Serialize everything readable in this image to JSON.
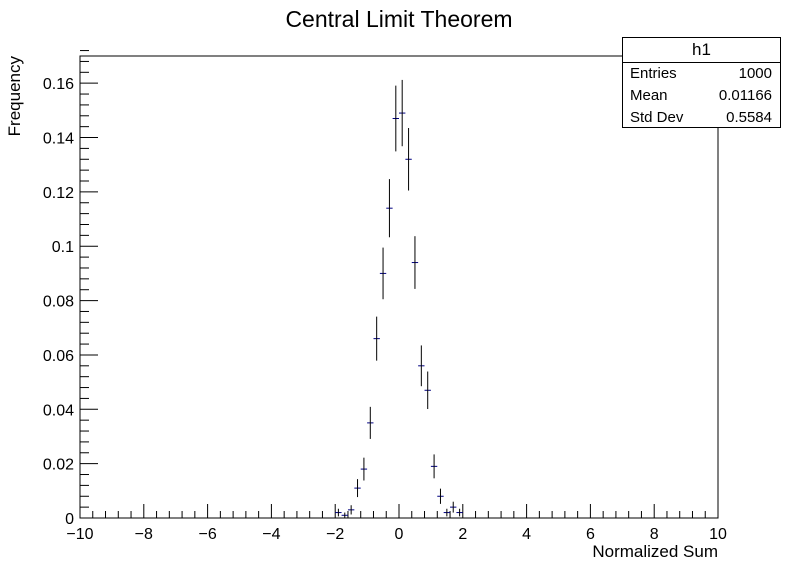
{
  "chart_data": {
    "type": "scatter",
    "title": "Central Limit Theorem",
    "xlabel": "Normalized Sum",
    "ylabel": "Frequency",
    "xlim": [
      -10,
      10
    ],
    "ylim": [
      0,
      0.17
    ],
    "x_ticks": [
      -10,
      -8,
      -6,
      -4,
      -2,
      0,
      2,
      4,
      6,
      8,
      10
    ],
    "x_tick_labels": [
      "−10",
      "−8",
      "−6",
      "−4",
      "−2",
      "0",
      "2",
      "4",
      "6",
      "8",
      "10"
    ],
    "y_ticks": [
      0,
      0.02,
      0.04,
      0.06,
      0.08,
      0.1,
      0.12,
      0.14,
      0.16
    ],
    "y_tick_labels": [
      "0",
      "0.02",
      "0.04",
      "0.06",
      "0.08",
      "0.1",
      "0.12",
      "0.14",
      "0.16"
    ],
    "bin_width": 0.2,
    "grid": false,
    "marker_color": "#000080",
    "points": [
      {
        "x": -1.9,
        "y": 0.002,
        "err": 0.0014
      },
      {
        "x": -1.7,
        "y": 0.001,
        "err": 0.001
      },
      {
        "x": -1.5,
        "y": 0.003,
        "err": 0.0017
      },
      {
        "x": -1.3,
        "y": 0.011,
        "err": 0.0033
      },
      {
        "x": -1.1,
        "y": 0.018,
        "err": 0.0042
      },
      {
        "x": -0.9,
        "y": 0.035,
        "err": 0.0059
      },
      {
        "x": -0.7,
        "y": 0.066,
        "err": 0.0081
      },
      {
        "x": -0.5,
        "y": 0.09,
        "err": 0.0095
      },
      {
        "x": -0.3,
        "y": 0.114,
        "err": 0.0107
      },
      {
        "x": -0.1,
        "y": 0.147,
        "err": 0.0121
      },
      {
        "x": 0.1,
        "y": 0.149,
        "err": 0.0122
      },
      {
        "x": 0.3,
        "y": 0.132,
        "err": 0.0115
      },
      {
        "x": 0.5,
        "y": 0.094,
        "err": 0.0097
      },
      {
        "x": 0.7,
        "y": 0.056,
        "err": 0.0075
      },
      {
        "x": 0.9,
        "y": 0.047,
        "err": 0.0069
      },
      {
        "x": 1.1,
        "y": 0.019,
        "err": 0.0044
      },
      {
        "x": 1.3,
        "y": 0.008,
        "err": 0.0028
      },
      {
        "x": 1.5,
        "y": 0.002,
        "err": 0.0014
      },
      {
        "x": 1.7,
        "y": 0.004,
        "err": 0.002
      },
      {
        "x": 1.9,
        "y": 0.002,
        "err": 0.0014
      }
    ],
    "legend": "top-right"
  },
  "stats": {
    "name": "h1",
    "entries_label": "Entries",
    "entries_value": "1000",
    "mean_label": "Mean",
    "mean_value": "0.01166",
    "stddev_label": "Std Dev",
    "stddev_value": "0.5584"
  }
}
